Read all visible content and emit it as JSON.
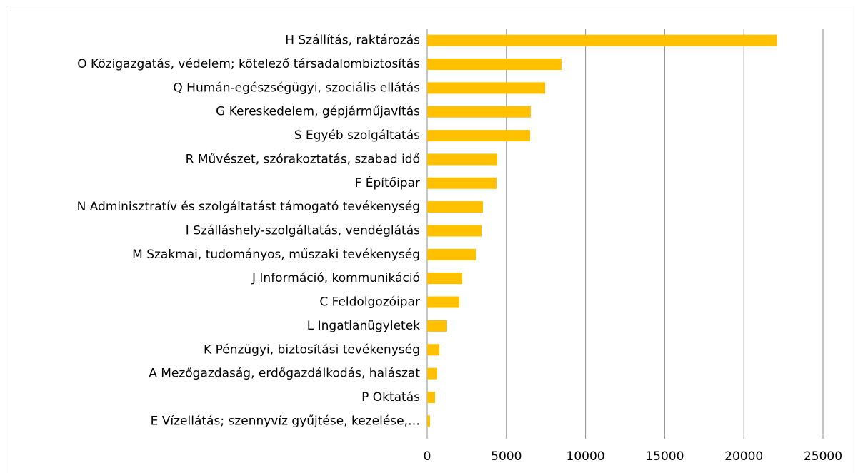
{
  "chart_data": {
    "type": "bar",
    "orientation": "horizontal",
    "categories": [
      "H Szállítás, raktározás",
      "O Közigazgatás, védelem; kötelező társadalombiztosítás",
      "Q Humán-egészségügyi, szociális ellátás",
      "G Kereskedelem, gépjárműjavítás",
      "S Egyéb szolgáltatás",
      "R Művészet, szórakoztatás, szabad idő",
      "F Építőipar",
      "N Adminisztratív és szolgáltatást támogató tevékenység",
      "I Szálláshely-szolgáltatás, vendéglátás",
      "M Szakmai, tudományos, műszaki tevékenység",
      "J Információ, kommunikáció",
      "C Feldolgozóipar",
      "L Ingatlanügyletek",
      "K Pénzügyi, biztosítási tevékenység",
      "A Mezőgazdaság, erdőgazdálkodás, halászat",
      "P Oktatás",
      "E Vízellátás; szennyvíz gyűjtése, kezelése,…"
    ],
    "values": [
      22100,
      8480,
      7450,
      6540,
      6500,
      4420,
      4380,
      3520,
      3430,
      3070,
      2210,
      2030,
      1220,
      770,
      630,
      500,
      180
    ],
    "color": "#ffc000",
    "xlim": [
      0,
      25000
    ],
    "xticks": [
      0,
      5000,
      10000,
      15000,
      20000,
      25000
    ],
    "grid": true
  }
}
